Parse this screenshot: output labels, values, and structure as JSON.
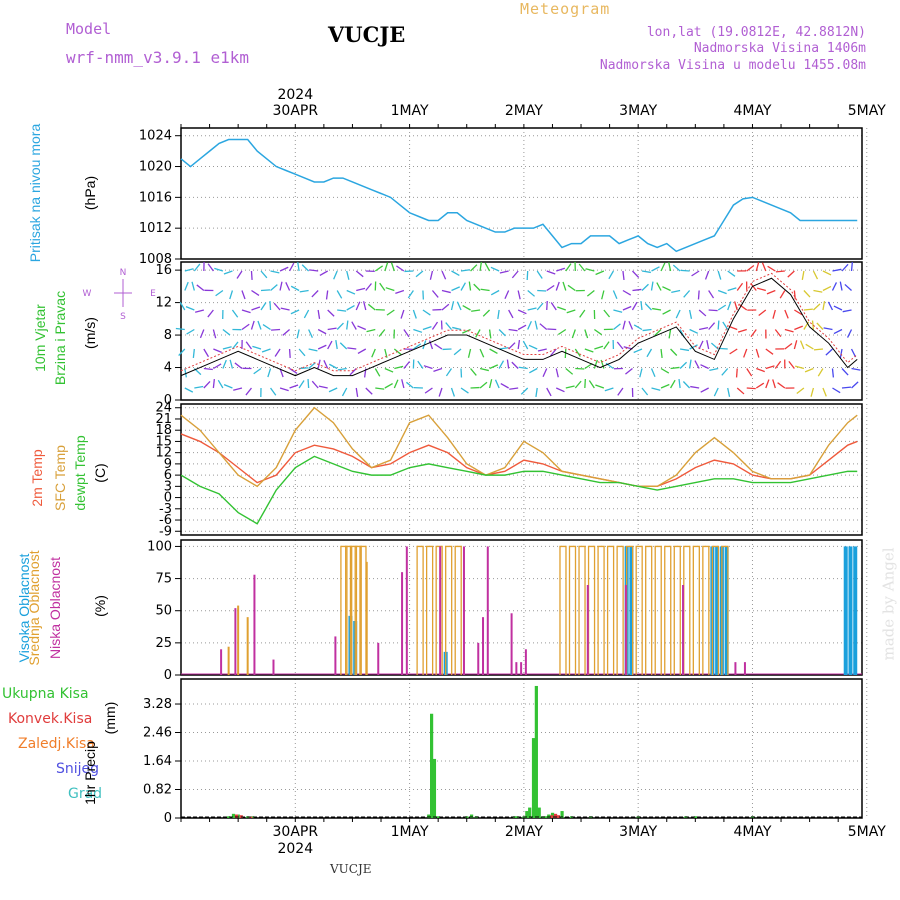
{
  "header": {
    "model_label": "Model",
    "model_name": "wrf-nmm_v3.9.1 e1km",
    "station": "VUCJE",
    "meteogram_label": "Meteogram",
    "lonlat": "lon,lat (19.0812E, 42.8812N)",
    "elevation": "Nadmorska Visina 1406m",
    "model_elevation": "Nadmorska Visina u modelu 1455.08m",
    "footer_station": "VUCJE",
    "watermark": "made by Angel"
  },
  "colors": {
    "pressure": "#2ba6e0",
    "temp2m": "#ef5a3c",
    "sfc": "#d8a03a",
    "dewpt": "#33c233",
    "high_cloud": "#1aa0dc",
    "mid_cloud": "#e0a030",
    "low_cloud": "#c030a0",
    "rain_total": "#33c233",
    "rain_conv": "#e03c3c",
    "rain_frz": "#f07e2a",
    "snow": "#5050e0",
    "hail": "#40c0c0"
  },
  "time_axis": {
    "top_year": "2024",
    "bottom_year": "2024",
    "labels": [
      "30APR",
      "1MAY",
      "2MAY",
      "3MAY",
      "4MAY",
      "5MAY"
    ],
    "positions": [
      12,
      24,
      36,
      48,
      60,
      72
    ],
    "range": [
      0,
      71.5
    ]
  },
  "panels": {
    "pressure": {
      "label": "Pritisak na nivou mora",
      "unit": "(hPa)",
      "ylim": [
        1008,
        1025
      ],
      "ticks": [
        1008,
        1012,
        1016,
        1020,
        1024
      ]
    },
    "wind": {
      "label1": "10m Vjetar",
      "label2": "Brzina i Pravac",
      "unit": "(m/s)",
      "ylim": [
        0,
        17
      ],
      "ticks": [
        0,
        4,
        8,
        12,
        16
      ],
      "compass": {
        "n": "N",
        "s": "S",
        "e": "E",
        "w": "W"
      }
    },
    "temp": {
      "label_2m": "2m Temp",
      "label_sfc": "SFC Temp",
      "label_dew": "dewpt Temp",
      "unit": "(C)",
      "ylim": [
        -10,
        25
      ],
      "ticks": [
        -9,
        -6,
        -3,
        0,
        3,
        6,
        9,
        12,
        15,
        18,
        21,
        24
      ]
    },
    "cloud": {
      "label_high": "Visoka Oblacnost",
      "label_mid": "Srednja Oblacnost",
      "label_low": "Niska Oblacnost",
      "unit": "(%)",
      "ylim": [
        0,
        105
      ],
      "ticks": [
        0,
        25,
        50,
        75,
        100
      ]
    },
    "precip": {
      "legend": [
        "Ukupna Kisa",
        "Konvek.Kisa",
        "Zaledj.Kisa",
        "Snijeg",
        "Grad"
      ],
      "label": "1hr Precip",
      "unit": "(mm)",
      "ylim": [
        0,
        4.0
      ],
      "ticks": [
        0,
        0.82,
        1.64,
        2.46,
        3.28
      ]
    }
  },
  "chart_data": [
    {
      "type": "line",
      "title": "Pritisak na nivou mora",
      "ylabel": "hPa",
      "series": [
        {
          "name": "Pritisak na nivou mora",
          "x": [
            0,
            1,
            2,
            3,
            4,
            5,
            6,
            7,
            8,
            9,
            10,
            11,
            12,
            13,
            14,
            15,
            16,
            17,
            18,
            19,
            20,
            21,
            22,
            23,
            24,
            25,
            26,
            27,
            28,
            29,
            30,
            31,
            32,
            33,
            34,
            35,
            36,
            37,
            38,
            39,
            40,
            41,
            42,
            43,
            44,
            45,
            46,
            47,
            48,
            49,
            50,
            51,
            52,
            53,
            54,
            55,
            56,
            57,
            58,
            59,
            60,
            61,
            62,
            63,
            64,
            65,
            66,
            67,
            68,
            69,
            70,
            71
          ],
          "values": [
            1021,
            1020,
            1021,
            1022,
            1023,
            1023.5,
            1023.5,
            1023.5,
            1022,
            1021,
            1020,
            1019.5,
            1019,
            1018.5,
            1018,
            1018,
            1018.5,
            1018.5,
            1018,
            1017.5,
            1017,
            1016.5,
            1016,
            1015,
            1014,
            1013.5,
            1013,
            1013,
            1014,
            1014,
            1013,
            1012.5,
            1012,
            1011.5,
            1011.5,
            1012,
            1012,
            1012,
            1012.5,
            1011,
            1009.5,
            1010,
            1010,
            1011,
            1011,
            1011,
            1010,
            1010.5,
            1011,
            1010,
            1009.5,
            1010,
            1009,
            1009.5,
            1010,
            1010.5,
            1011,
            1013,
            1015,
            1015.8,
            1016,
            1015.5,
            1015,
            1014.5,
            1014,
            1013,
            1013,
            1013,
            1013,
            1013,
            1013,
            1013
          ]
        }
      ]
    },
    {
      "type": "line",
      "title": "10m Vjetar",
      "ylabel": "m/s",
      "series": [
        {
          "name": "Brzina",
          "x": [
            0,
            2,
            4,
            6,
            8,
            10,
            12,
            14,
            16,
            18,
            20,
            22,
            24,
            26,
            28,
            30,
            32,
            34,
            36,
            38,
            40,
            42,
            44,
            46,
            48,
            50,
            52,
            54,
            56,
            58,
            60,
            62,
            64,
            66,
            68,
            70,
            71
          ],
          "values": [
            3,
            4,
            5,
            6,
            5,
            4,
            3,
            4,
            3,
            3,
            4,
            5,
            6,
            7,
            8,
            8,
            7,
            6,
            5,
            5,
            6,
            5,
            4,
            5,
            7,
            8,
            9,
            6,
            5,
            10,
            14,
            15,
            13,
            9,
            7,
            4,
            5
          ]
        }
      ]
    },
    {
      "type": "line",
      "title": "Temp",
      "ylabel": "C",
      "series": [
        {
          "name": "2m Temp",
          "x": [
            0,
            2,
            4,
            6,
            8,
            10,
            12,
            14,
            16,
            18,
            20,
            22,
            24,
            26,
            28,
            30,
            32,
            34,
            36,
            38,
            40,
            42,
            44,
            46,
            48,
            50,
            52,
            54,
            56,
            58,
            60,
            62,
            64,
            66,
            68,
            70,
            71
          ],
          "values": [
            17,
            15,
            12,
            8,
            4,
            6,
            12,
            14,
            13,
            11,
            8,
            9,
            12,
            14,
            12,
            8,
            6,
            7,
            10,
            9,
            7,
            6,
            5,
            4,
            3,
            3,
            5,
            8,
            10,
            9,
            6,
            5,
            5,
            6,
            10,
            14,
            15
          ]
        },
        {
          "name": "SFC Temp",
          "x": [
            0,
            2,
            4,
            6,
            8,
            10,
            12,
            14,
            16,
            18,
            20,
            22,
            24,
            26,
            28,
            30,
            32,
            34,
            36,
            38,
            40,
            42,
            44,
            46,
            48,
            50,
            52,
            54,
            56,
            58,
            60,
            62,
            64,
            66,
            68,
            70,
            71
          ],
          "values": [
            22,
            18,
            12,
            6,
            3,
            8,
            18,
            24,
            20,
            13,
            8,
            10,
            20,
            22,
            16,
            9,
            6,
            8,
            15,
            12,
            7,
            6,
            5,
            4,
            3,
            3,
            6,
            12,
            16,
            12,
            7,
            5,
            5,
            6,
            14,
            20,
            22
          ]
        },
        {
          "name": "dewpt Temp",
          "x": [
            0,
            2,
            4,
            6,
            8,
            10,
            12,
            14,
            16,
            18,
            20,
            22,
            24,
            26,
            28,
            30,
            32,
            34,
            36,
            38,
            40,
            42,
            44,
            46,
            48,
            50,
            52,
            54,
            56,
            58,
            60,
            62,
            64,
            66,
            68,
            70,
            71
          ],
          "values": [
            6,
            3,
            1,
            -4,
            -7,
            2,
            8,
            11,
            9,
            7,
            6,
            6,
            8,
            9,
            8,
            7,
            6,
            6,
            7,
            7,
            6,
            5,
            4,
            4,
            3,
            2,
            3,
            4,
            5,
            5,
            4,
            4,
            4,
            5,
            6,
            7,
            7
          ]
        }
      ]
    },
    {
      "type": "bar",
      "title": "Oblacnost",
      "ylabel": "%",
      "series": [
        {
          "name": "Visoka Oblacnost",
          "x": [
            18,
            18.5,
            28,
            47,
            47.5,
            56,
            56.5,
            57,
            57.5,
            70,
            70.5,
            71
          ],
          "values": [
            46,
            42,
            18,
            100,
            100,
            100,
            100,
            100,
            100,
            100,
            100,
            100
          ]
        },
        {
          "name": "Srednja Oblacnost",
          "x": [
            5,
            6,
            7,
            9,
            17,
            17.5,
            18,
            18.5,
            19,
            19.5,
            20,
            24,
            25,
            26,
            27,
            28,
            29,
            34,
            38,
            39,
            40,
            41,
            42,
            43,
            44,
            45,
            46,
            47,
            48,
            49,
            50,
            51,
            52,
            53,
            54,
            55,
            56,
            57
          ],
          "values": [
            22,
            54,
            45,
            0,
            100,
            100,
            100,
            100,
            100,
            88,
            0,
            0,
            100,
            100,
            100,
            100,
            100,
            0,
            0,
            0,
            100,
            100,
            100,
            100,
            100,
            100,
            100,
            100,
            100,
            100,
            100,
            100,
            100,
            100,
            100,
            100,
            100,
            100
          ]
        },
        {
          "name": "Niska Oblacnost",
          "x": [
            4,
            5.5,
            7.5,
            9.5,
            16,
            20.5,
            23,
            23.5,
            27,
            29.5,
            31,
            31.5,
            32,
            34.5,
            35,
            35.5,
            36,
            42.5,
            46.5,
            52.5,
            58,
            59
          ],
          "values": [
            20,
            52,
            78,
            12,
            30,
            25,
            80,
            100,
            100,
            100,
            25,
            45,
            100,
            48,
            10,
            10,
            20,
            70,
            70,
            70,
            10,
            10
          ]
        }
      ]
    },
    {
      "type": "bar",
      "title": "1hr Precip",
      "ylabel": "mm",
      "series": [
        {
          "name": "Ukupna Kisa",
          "x": [
            5,
            5.5,
            6,
            7,
            7.5,
            26,
            26.3,
            26.6,
            27,
            30,
            30.5,
            31,
            35,
            35.3,
            36,
            36.3,
            36.6,
            37,
            37.3,
            37.6,
            38,
            38.3,
            38.6,
            39,
            39.3,
            39.6,
            40,
            41,
            43,
            48,
            53,
            54,
            60
          ],
          "values": [
            0.05,
            0.12,
            0.1,
            0.05,
            0.05,
            0.1,
            3.0,
            1.7,
            0.05,
            0.05,
            0.1,
            0.05,
            0.05,
            0.05,
            0.05,
            0.2,
            0.3,
            2.3,
            3.8,
            0.3,
            0.05,
            0.05,
            0.1,
            0.15,
            0.1,
            0.05,
            0.2,
            0.05,
            0.05,
            0.05,
            0.05,
            0.05,
            0.05
          ]
        },
        {
          "name": "Konvek.Kisa",
          "x": [
            5.5,
            6,
            7,
            38.6,
            39,
            39.3
          ],
          "values": [
            0.1,
            0.08,
            0.04,
            0.08,
            0.12,
            0.08
          ]
        }
      ]
    }
  ]
}
